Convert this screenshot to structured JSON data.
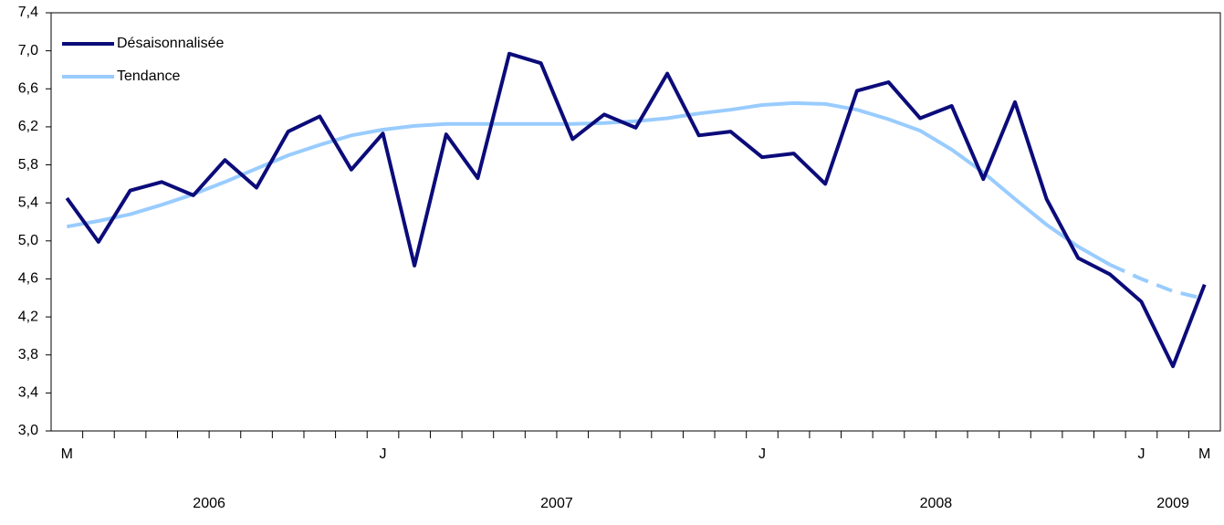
{
  "chart_data": {
    "type": "line",
    "categories": [
      "M",
      null,
      null,
      null,
      null,
      null,
      null,
      null,
      null,
      null,
      "J",
      null,
      null,
      null,
      null,
      null,
      null,
      null,
      null,
      null,
      null,
      null,
      "J",
      null,
      null,
      null,
      null,
      null,
      null,
      null,
      null,
      null,
      null,
      null,
      "J",
      null,
      "M"
    ],
    "year_labels": [
      "2006",
      "2007",
      "2008",
      "2009"
    ],
    "series": [
      {
        "name": "Désaisonnalisée",
        "color": "#0b0b7a",
        "values": [
          5.45,
          4.99,
          5.53,
          5.62,
          5.48,
          5.85,
          5.56,
          6.15,
          6.31,
          5.75,
          6.13,
          4.74,
          6.12,
          5.66,
          6.97,
          6.87,
          6.07,
          6.33,
          6.19,
          6.76,
          6.11,
          6.15,
          5.88,
          5.92,
          5.6,
          6.58,
          6.67,
          6.29,
          6.42,
          5.65,
          6.46,
          5.44,
          4.82,
          4.65,
          4.36,
          3.68,
          4.54
        ]
      },
      {
        "name": "Tendance",
        "color": "#99ccff",
        "dashed_from_index": 33,
        "values": [
          5.15,
          5.21,
          5.28,
          5.38,
          5.49,
          5.62,
          5.76,
          5.9,
          6.01,
          6.11,
          6.17,
          6.21,
          6.23,
          6.23,
          6.23,
          6.23,
          6.23,
          6.24,
          6.26,
          6.29,
          6.34,
          6.38,
          6.43,
          6.45,
          6.44,
          6.38,
          6.28,
          6.16,
          5.96,
          5.72,
          5.44,
          5.17,
          4.94,
          4.75,
          4.6,
          4.47,
          4.39
        ]
      }
    ],
    "ylim": [
      3.0,
      7.4
    ],
    "yticks": [
      {
        "value": 3.0,
        "label": "3,0"
      },
      {
        "value": 3.4,
        "label": "3,4"
      },
      {
        "value": 3.8,
        "label": "3,8"
      },
      {
        "value": 4.2,
        "label": "4,2"
      },
      {
        "value": 4.6,
        "label": "4,6"
      },
      {
        "value": 5.0,
        "label": "5,0"
      },
      {
        "value": 5.4,
        "label": "5,4"
      },
      {
        "value": 5.8,
        "label": "5,8"
      },
      {
        "value": 6.2,
        "label": "6,2"
      },
      {
        "value": 6.6,
        "label": "6,6"
      },
      {
        "value": 7.0,
        "label": "7,0"
      },
      {
        "value": 7.4,
        "label": "7,4"
      }
    ],
    "grid": false,
    "legend": "top-left"
  }
}
